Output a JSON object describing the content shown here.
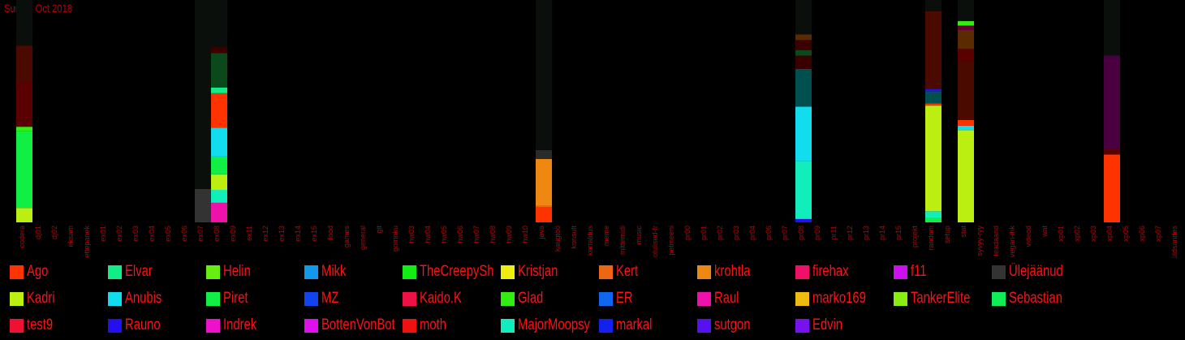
{
  "date_label": "Sun 28 Oct 2018",
  "chart_data": {
    "type": "bar",
    "stacked": true,
    "ylim": [
      0,
      1
    ],
    "categories": [
      "codera",
      "dj01",
      "dj02",
      "eksam",
      "ettepanek",
      "ex01",
      "ex02",
      "ex03",
      "ex04",
      "ex05",
      "ex06",
      "ex07",
      "ex08",
      "ex09",
      "ex11",
      "ex12",
      "ex13",
      "ex14",
      "ex15",
      "food",
      "games",
      "general",
      "git",
      "gomoku",
      "hw03",
      "hw04",
      "hw05",
      "hw06",
      "hw07",
      "hw08",
      "hw09",
      "hw10",
      "java",
      "kaugtöö",
      "konsult",
      "korraldus",
      "meme",
      "mittemidi",
      "music",
      "olulised-fr",
      "pelmeeni",
      "pr00",
      "pr01",
      "pr02",
      "pr03",
      "pr04",
      "pr06",
      "pr07",
      "pr08",
      "pr09",
      "pr11",
      "pr12",
      "pr13",
      "pr14",
      "pr15",
      "projekt",
      "random",
      "setup",
      "stat",
      "syvyy-ryy",
      "teadaand",
      "vegan-ihk",
      "videod",
      "wat",
      "xp01",
      "xp02",
      "xp03",
      "xp04",
      "xp05",
      "xp06",
      "xp07",
      "üldsandes"
    ],
    "channel_bars": [
      {
        "channel": "codera",
        "segments": [
          {
            "user": "Kadri",
            "value": 0.065
          },
          {
            "user": "Piret",
            "value": 0.345
          },
          {
            "user": "Glad",
            "value": 0.02
          },
          {
            "user": "dark-a",
            "value": 0.2
          },
          {
            "user": "dark-b",
            "value": 0.165
          },
          {
            "user": "dark-c",
            "value": 0.205
          }
        ]
      },
      {
        "channel": "ex07",
        "segments": [
          {
            "user": "Ülejäänud",
            "value": 0.15
          },
          {
            "user": "dark-c",
            "value": 0.85
          }
        ]
      },
      {
        "channel": "ex08",
        "segments": [
          {
            "user": "Raul",
            "value": 0.088
          },
          {
            "user": "MajorMoopsy",
            "value": 0.058
          },
          {
            "user": "Kadri",
            "value": 0.07
          },
          {
            "user": "Piret",
            "value": 0.08
          },
          {
            "user": "Anubis",
            "value": 0.13
          },
          {
            "user": "Ago",
            "value": 0.155
          },
          {
            "user": "Elvar",
            "value": 0.025
          },
          {
            "user": "dark-d",
            "value": 0.155
          },
          {
            "user": "dark-e",
            "value": 0.03
          },
          {
            "user": "dark-c",
            "value": 0.209
          }
        ]
      },
      {
        "channel": "java",
        "segments": [
          {
            "user": "Ago",
            "value": 0.068
          },
          {
            "user": "Kert",
            "value": 0.007
          },
          {
            "user": "krohtla",
            "value": 0.21
          },
          {
            "user": "dark-f",
            "value": 0.04
          },
          {
            "user": "dark-c",
            "value": 0.675
          }
        ]
      },
      {
        "channel": "pr08",
        "segments": [
          {
            "user": "Rauno",
            "value": 0.015
          },
          {
            "user": "MajorMoopsy",
            "value": 0.26
          },
          {
            "user": "Anubis",
            "value": 0.245
          },
          {
            "user": "dark-g",
            "value": 0.17
          },
          {
            "user": "dark-e",
            "value": 0.06
          },
          {
            "user": "dark-d",
            "value": 0.025
          },
          {
            "user": "dark-e",
            "value": 0.045
          },
          {
            "user": "dark-h",
            "value": 0.025
          },
          {
            "user": "dark-c",
            "value": 0.155
          }
        ]
      },
      {
        "channel": "random",
        "segments": [
          {
            "user": "Piret",
            "value": 0.02
          },
          {
            "user": "MajorMoopsy",
            "value": 0.03
          },
          {
            "user": "Kadri",
            "value": 0.475
          },
          {
            "user": "Ago",
            "value": 0.01
          },
          {
            "user": "dark-g",
            "value": 0.055
          },
          {
            "user": "Rauno",
            "value": 0.01
          },
          {
            "user": "dark-b",
            "value": 0.35
          },
          {
            "user": "dark-c",
            "value": 0.05
          }
        ]
      },
      {
        "channel": "stat",
        "segments": [
          {
            "user": "Kadri",
            "value": 0.415
          },
          {
            "user": "Anubis",
            "value": 0.02
          },
          {
            "user": "Ago",
            "value": 0.025
          },
          {
            "user": "dark-b",
            "value": 0.265
          },
          {
            "user": "dark-a",
            "value": 0.055
          },
          {
            "user": "dark-h",
            "value": 0.085
          },
          {
            "user": "dark-i",
            "value": 0.02
          },
          {
            "user": "Glad",
            "value": 0.02
          },
          {
            "user": "dark-c",
            "value": 0.095
          }
        ]
      },
      {
        "channel": "xp04",
        "segments": [
          {
            "user": "Ago",
            "value": 0.305
          },
          {
            "user": "dark-a",
            "value": 0.025
          },
          {
            "user": "dark-j",
            "value": 0.42
          },
          {
            "user": "dark-c",
            "value": 0.25
          }
        ]
      }
    ],
    "legend": [
      {
        "name": "Ago",
        "color": "#ff3300"
      },
      {
        "name": "Elvar",
        "color": "#11ee88"
      },
      {
        "name": "Helin",
        "color": "#66ee11"
      },
      {
        "name": "Mikk",
        "color": "#1199ee"
      },
      {
        "name": "TheCreepySh",
        "color": "#11ee11"
      },
      {
        "name": "Kristjan",
        "color": "#eeee11"
      },
      {
        "name": "Kert",
        "color": "#ee6611"
      },
      {
        "name": "krohtla",
        "color": "#ee8811"
      },
      {
        "name": "firehax",
        "color": "#ee1166"
      },
      {
        "name": "f11",
        "color": "#cc11ee"
      },
      {
        "name": "Ülejäänud",
        "color": "#333333"
      },
      {
        "name": "Kadri",
        "color": "#bbee11"
      },
      {
        "name": "Anubis",
        "color": "#11ddee"
      },
      {
        "name": "Piret",
        "color": "#11ee44"
      },
      {
        "name": "MZ",
        "color": "#1144ee"
      },
      {
        "name": "Kaido.K",
        "color": "#ee1144"
      },
      {
        "name": "Glad",
        "color": "#33ee11"
      },
      {
        "name": "ER",
        "color": "#1166ee"
      },
      {
        "name": "Raul",
        "color": "#ee11aa"
      },
      {
        "name": "marko169",
        "color": "#eebb11"
      },
      {
        "name": "TankerElite",
        "color": "#88ee11"
      },
      {
        "name": "Sebastian",
        "color": "#11ee55"
      },
      {
        "name": "test9",
        "color": "#ee1133"
      },
      {
        "name": "Rauno",
        "color": "#2211ee"
      },
      {
        "name": "Indrek",
        "color": "#ee11cc"
      },
      {
        "name": "BottenVonBot",
        "color": "#dd11ee"
      },
      {
        "name": "moth",
        "color": "#ee1111"
      },
      {
        "name": "MajorMoopsy",
        "color": "#11eebb"
      },
      {
        "name": "markal",
        "color": "#1122ee"
      },
      {
        "name": "sutgon",
        "color": "#5511ee"
      },
      {
        "name": "Edvin",
        "color": "#7711ee"
      }
    ],
    "extra_colors": {
      "dark-a": "#5a0000",
      "dark-b": "#4a0a00",
      "dark-c": "#0a0f0b",
      "dark-d": "#0a4a1a",
      "dark-e": "#3a0000",
      "dark-f": "#2a2a2a",
      "dark-g": "#005050",
      "dark-h": "#5a2a00",
      "dark-i": "#660033",
      "dark-j": "#4a0040"
    }
  }
}
